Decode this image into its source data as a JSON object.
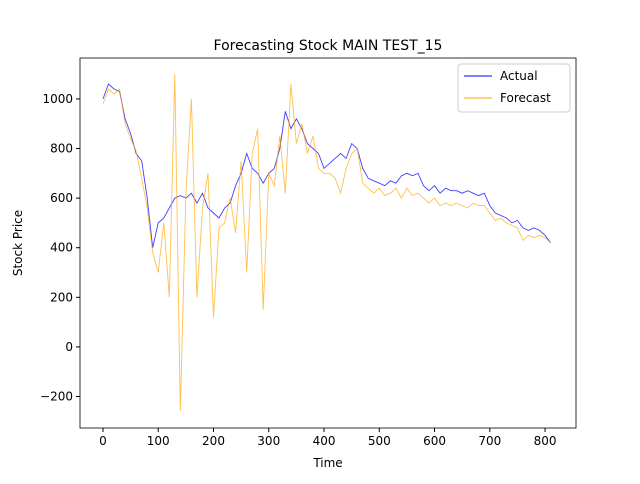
{
  "chart_data": {
    "type": "line",
    "title": "Forecasting Stock MAIN TEST_15",
    "x_label": "Time",
    "y_label": "Stock Price",
    "x": [
      0,
      10,
      20,
      30,
      40,
      50,
      60,
      70,
      80,
      90,
      100,
      110,
      120,
      130,
      140,
      150,
      160,
      170,
      180,
      190,
      200,
      210,
      220,
      230,
      240,
      250,
      260,
      270,
      280,
      290,
      300,
      310,
      320,
      330,
      340,
      350,
      360,
      370,
      380,
      390,
      400,
      410,
      420,
      430,
      440,
      450,
      460,
      470,
      480,
      490,
      500,
      510,
      520,
      530,
      540,
      550,
      560,
      570,
      580,
      590,
      600,
      610,
      620,
      630,
      640,
      650,
      660,
      670,
      680,
      690,
      700,
      710,
      720,
      730,
      740,
      750,
      760,
      770,
      780,
      790,
      800,
      810
    ],
    "series": [
      {
        "name": "Actual",
        "color": "#0000ff",
        "values": [
          1000,
          1060,
          1040,
          1030,
          920,
          860,
          780,
          750,
          600,
          400,
          500,
          520,
          560,
          600,
          610,
          600,
          620,
          580,
          620,
          560,
          540,
          520,
          560,
          580,
          650,
          700,
          780,
          720,
          700,
          660,
          700,
          720,
          800,
          950,
          880,
          920,
          880,
          820,
          800,
          780,
          720,
          740,
          760,
          780,
          760,
          820,
          800,
          720,
          680,
          670,
          660,
          650,
          670,
          660,
          690,
          700,
          690,
          700,
          650,
          630,
          650,
          620,
          640,
          630,
          630,
          620,
          630,
          620,
          610,
          620,
          570,
          540,
          530,
          520,
          500,
          510,
          480,
          470,
          480,
          470,
          450,
          420
        ]
      },
      {
        "name": "Forecast",
        "color": "#ffa500",
        "values": [
          980,
          1040,
          1020,
          1040,
          900,
          840,
          790,
          680,
          560,
          380,
          300,
          500,
          200,
          1100,
          -260,
          620,
          1000,
          200,
          560,
          700,
          120,
          480,
          500,
          600,
          460,
          750,
          300,
          780,
          880,
          150,
          700,
          650,
          850,
          620,
          1060,
          820,
          900,
          780,
          850,
          720,
          700,
          700,
          680,
          620,
          720,
          780,
          800,
          660,
          640,
          620,
          640,
          610,
          620,
          640,
          600,
          640,
          610,
          620,
          600,
          580,
          600,
          570,
          580,
          570,
          580,
          570,
          560,
          580,
          570,
          570,
          540,
          510,
          520,
          500,
          490,
          480,
          430,
          450,
          440,
          450,
          440,
          420
        ]
      }
    ],
    "xlim": [
      -41.6,
      856
    ],
    "ylim": [
      -327,
      1165
    ],
    "xticks": [
      0,
      100,
      200,
      300,
      400,
      500,
      600,
      700,
      800
    ],
    "yticks": [
      {
        "value": -200,
        "label": "−200"
      },
      0,
      200,
      400,
      600,
      800,
      1000
    ],
    "legend": "upper right"
  }
}
